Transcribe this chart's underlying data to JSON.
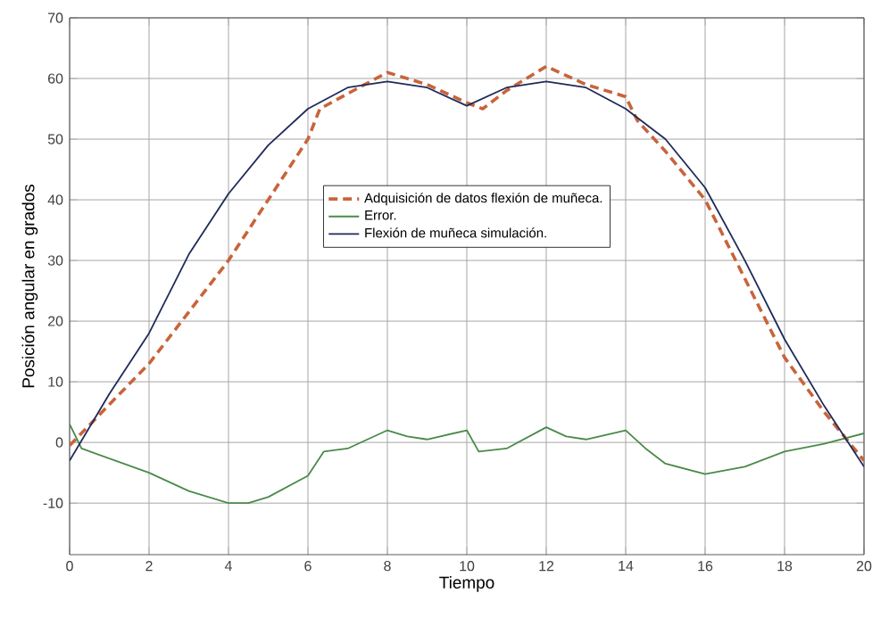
{
  "chart_data": {
    "type": "line",
    "xlabel": "Tiempo",
    "ylabel": "Posición angular en grados",
    "xlim": [
      0,
      20
    ],
    "ylim": [
      -18.5,
      70
    ],
    "xticks": [
      0,
      2,
      4,
      6,
      8,
      10,
      12,
      14,
      16,
      18,
      20
    ],
    "yticks": [
      -10,
      0,
      10,
      20,
      30,
      40,
      50,
      60,
      70
    ],
    "grid": true,
    "legend": "center",
    "series": [
      {
        "name": "Adquisición de datos flexión de muñeca.",
        "color": "#c8643a",
        "line_style": "dashed",
        "x": [
          0,
          2,
          4,
          6,
          6.3,
          7,
          8,
          9,
          10,
          10.4,
          11,
          12,
          13,
          14,
          14.3,
          15,
          16,
          17,
          18,
          19,
          20
        ],
        "values": [
          -0.5,
          13,
          30,
          50,
          55,
          57.5,
          61,
          59,
          56,
          55,
          58,
          62,
          59,
          57,
          53,
          48,
          40,
          27,
          14,
          5,
          -3
        ]
      },
      {
        "name": "Error.",
        "color": "#4a8a4a",
        "line_style": "solid",
        "x": [
          0,
          0.3,
          2,
          3,
          4,
          4.5,
          5,
          6,
          6.4,
          7,
          8,
          8.5,
          9,
          10,
          10.3,
          11,
          12,
          12.5,
          13,
          14,
          14.5,
          15,
          16,
          17,
          18,
          19,
          20
        ],
        "values": [
          3,
          -1,
          -5,
          -8,
          -10,
          -10,
          -9,
          -5.5,
          -1.5,
          -1,
          2,
          1,
          0.5,
          2,
          -1.5,
          -1,
          2.5,
          1,
          0.5,
          2,
          -1,
          -3.5,
          -5.2,
          -4,
          -1.5,
          -0.2,
          1.5
        ]
      },
      {
        "name": "Flexión de muñeca simulación.",
        "color": "#1f2a5a",
        "line_style": "solid",
        "x": [
          0,
          1,
          2,
          3,
          4,
          5,
          6,
          7,
          8,
          9,
          10,
          11,
          12,
          13,
          14,
          15,
          16,
          17,
          18,
          19,
          20
        ],
        "values": [
          -3,
          8,
          18,
          31,
          41,
          49,
          55,
          58.5,
          59.5,
          58.5,
          55.5,
          58.5,
          59.5,
          58.5,
          55,
          50,
          42,
          30,
          17,
          6,
          -4
        ]
      }
    ]
  }
}
